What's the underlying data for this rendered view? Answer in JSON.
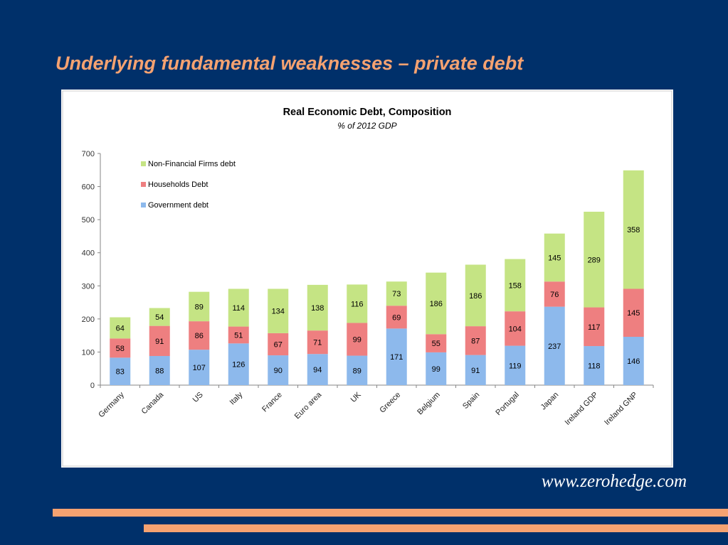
{
  "slide": {
    "title": "Underlying fundamental weaknesses – private debt",
    "source": "www.zerohedge.com",
    "accent_color": "#f5a271",
    "background_color": "#00306a"
  },
  "chart_data": {
    "type": "bar",
    "stacked": true,
    "title": "Real Economic Debt, Composition",
    "subtitle": "% of 2012 GDP",
    "xlabel": "",
    "ylabel": "",
    "ylim": [
      0,
      700
    ],
    "yticks": [
      0,
      100,
      200,
      300,
      400,
      500,
      600,
      700
    ],
    "grid": false,
    "legend_position": "top-left",
    "categories": [
      "Germany",
      "Canada",
      "US",
      "Italy",
      "France",
      "Euro area",
      "UK",
      "Greece",
      "Belgium",
      "Spain",
      "Portugal",
      "Japan",
      "Ireland GDP",
      "Ireland GNP"
    ],
    "series": [
      {
        "name": "Government debt",
        "color": "#8db9ec",
        "values": [
          83,
          88,
          107,
          126,
          90,
          94,
          89,
          171,
          99,
          91,
          119,
          237,
          118,
          146
        ]
      },
      {
        "name": "Households Debt",
        "color": "#ee7f80",
        "values": [
          58,
          91,
          86,
          51,
          67,
          71,
          99,
          69,
          55,
          87,
          104,
          76,
          117,
          145
        ]
      },
      {
        "name": "Non-Financial Firms debt",
        "color": "#c5e484",
        "values": [
          64,
          54,
          89,
          114,
          134,
          138,
          116,
          73,
          186,
          186,
          158,
          145,
          289,
          358
        ]
      }
    ]
  }
}
